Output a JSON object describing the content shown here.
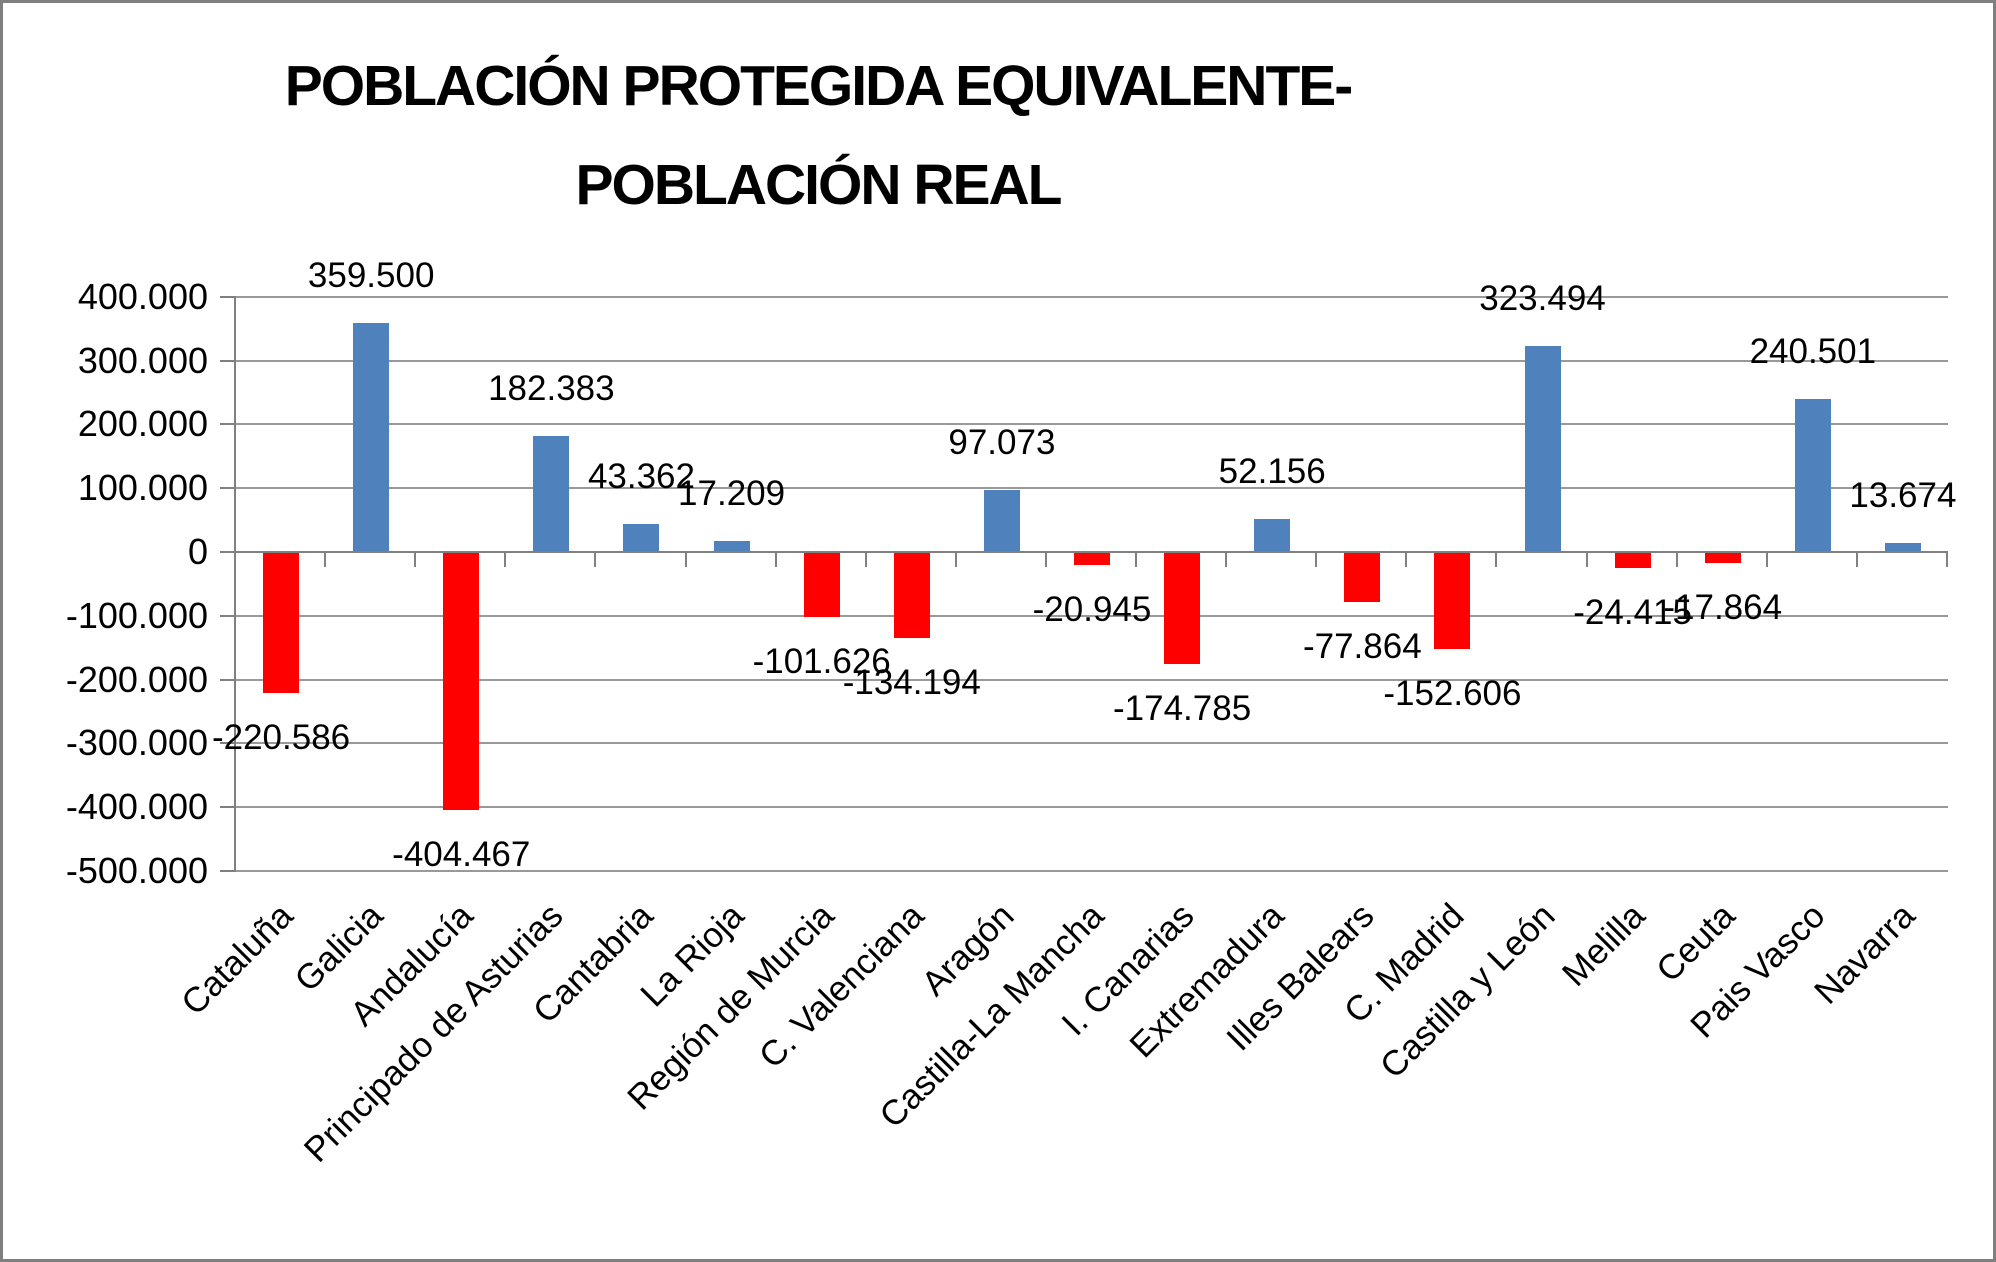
{
  "title": {
    "line1": "POBLACIÓN PROTEGIDA EQUIVALENTE-",
    "line2": "POBLACIÓN REAL"
  },
  "chart_data": {
    "type": "bar",
    "title": "POBLACIÓN PROTEGIDA EQUIVALENTE-POBLACIÓN REAL",
    "categories": [
      "Cataluña",
      "Galicia",
      "Andalucía",
      "Principado de Asturias",
      "Cantabria",
      "La Rioja",
      "Región de Murcia",
      "C. Valenciana",
      "Aragón",
      "Castilla-La Mancha",
      "I. Canarias",
      "Extremadura",
      "Illes Balears",
      "C. Madrid",
      "Castilla y León",
      "Melilla",
      "Ceuta",
      "Pais Vasco",
      "Navarra"
    ],
    "values": [
      -220586,
      359500,
      -404467,
      182383,
      43362,
      17209,
      -101626,
      -134194,
      97073,
      -20945,
      -174785,
      52156,
      -77864,
      -152606,
      323494,
      -24415,
      -17864,
      240501,
      13674
    ],
    "data_labels": [
      "-220.586",
      "359.500",
      "-404.467",
      "182.383",
      "43.362",
      "17.209",
      "-101.626",
      "-134.194",
      "97.073",
      "-20.945",
      "-174.785",
      "52.156",
      "-77.864",
      "-152.606",
      "323.494",
      "-24.415",
      "-17.864",
      "240.501",
      "13.674"
    ],
    "xlabel": "",
    "ylabel": "",
    "ylim": [
      -500000,
      400000
    ],
    "ytick_step": 100000,
    "ytick_labels": [
      "400.000",
      "300.000",
      "200.000",
      "100.000",
      "0",
      "-100.000",
      "-200.000",
      "-300.000",
      "-400.000",
      "-500.000"
    ],
    "grid": true,
    "legend_position": "none"
  },
  "colors": {
    "bar_positive": "#4F81BD",
    "bar_negative": "#FF0000",
    "gridline": "#999999",
    "axis": "#808080",
    "frame_border": "#7F7F7F",
    "background": "#FFFFFF",
    "text": "#000000"
  }
}
